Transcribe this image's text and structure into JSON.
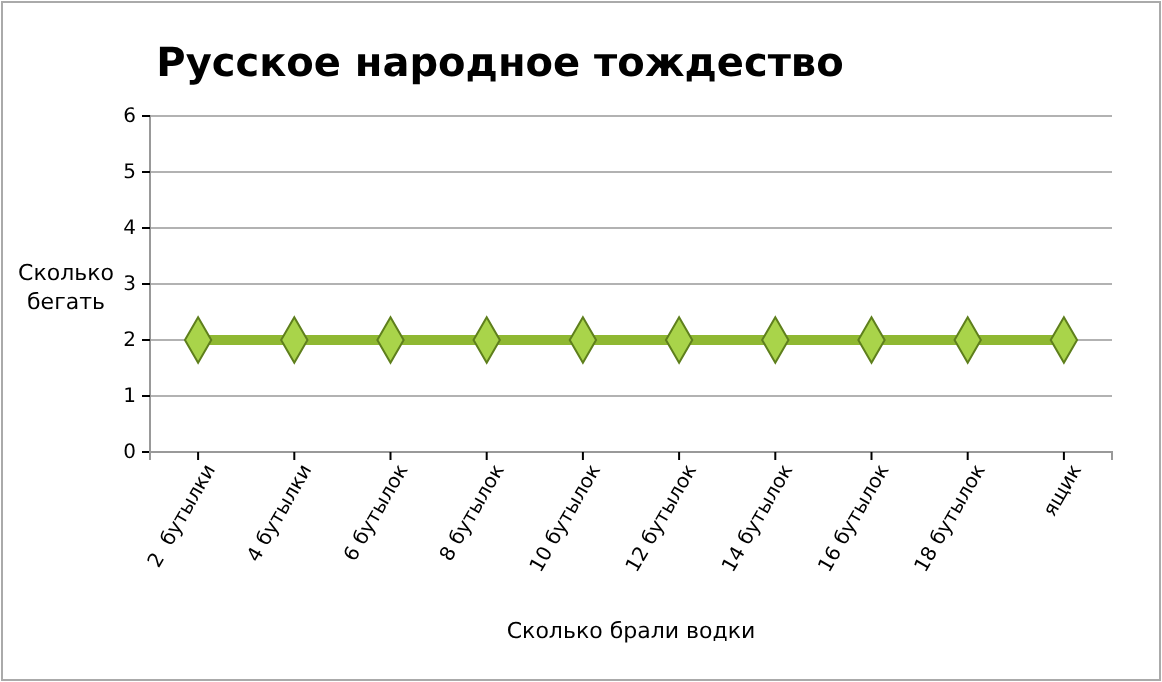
{
  "chart_data": {
    "type": "line",
    "title": "Русское народное тождество",
    "xlabel": "Сколько брали водки",
    "ylabel": "Сколько\nбегать",
    "categories": [
      "2  бутылки",
      "4 бутылки",
      "6 бутылок",
      "8 бутылок",
      "10 бутылок",
      "12 бутылок",
      "14 бутылок",
      "16 бутылок",
      "18 бутылок",
      "ящик"
    ],
    "series": [
      {
        "color": "#8fb832",
        "values": [
          2,
          2,
          2,
          2,
          2,
          2,
          2,
          2,
          2,
          2
        ]
      }
    ],
    "ylim": [
      0,
      6
    ],
    "yticks": [
      0,
      1,
      2,
      3,
      4,
      5,
      6
    ],
    "grid": "y",
    "marker": "diamond",
    "line_style": "solid",
    "legend": false
  }
}
